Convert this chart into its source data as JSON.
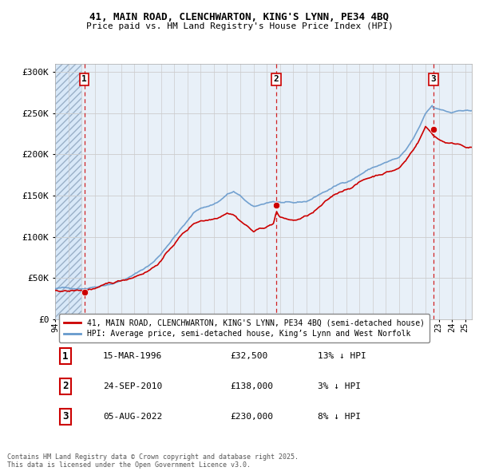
{
  "title_line1": "41, MAIN ROAD, CLENCHWARTON, KING'S LYNN, PE34 4BQ",
  "title_line2": "Price paid vs. HM Land Registry's House Price Index (HPI)",
  "ylabel_ticks": [
    "£0",
    "£50K",
    "£100K",
    "£150K",
    "£200K",
    "£250K",
    "£300K"
  ],
  "ytick_values": [
    0,
    50000,
    100000,
    150000,
    200000,
    250000,
    300000
  ],
  "ylim": [
    0,
    310000
  ],
  "xlim_start": 1994.0,
  "xlim_end": 2025.5,
  "purchase_dates": [
    1996.21,
    2010.73,
    2022.59
  ],
  "purchase_prices": [
    32500,
    138000,
    230000
  ],
  "purchase_labels": [
    "1",
    "2",
    "3"
  ],
  "red_line_color": "#cc0000",
  "blue_line_color": "#6699cc",
  "dashed_line_color": "#cc0000",
  "grid_color": "#cccccc",
  "plot_bg_color": "#e8f0f8",
  "hatch_bg_color": "#d8e8f8",
  "legend_label_red": "41, MAIN ROAD, CLENCHWARTON, KING'S LYNN, PE34 4BQ (semi-detached house)",
  "legend_label_blue": "HPI: Average price, semi-detached house, King’s Lynn and West Norfolk",
  "table_rows": [
    [
      "1",
      "15-MAR-1996",
      "£32,500",
      "13% ↓ HPI"
    ],
    [
      "2",
      "24-SEP-2010",
      "£138,000",
      "3% ↓ HPI"
    ],
    [
      "3",
      "05-AUG-2022",
      "£230,000",
      "8% ↓ HPI"
    ]
  ],
  "footer_text": "Contains HM Land Registry data © Crown copyright and database right 2025.\nThis data is licensed under the Open Government Licence v3.0."
}
